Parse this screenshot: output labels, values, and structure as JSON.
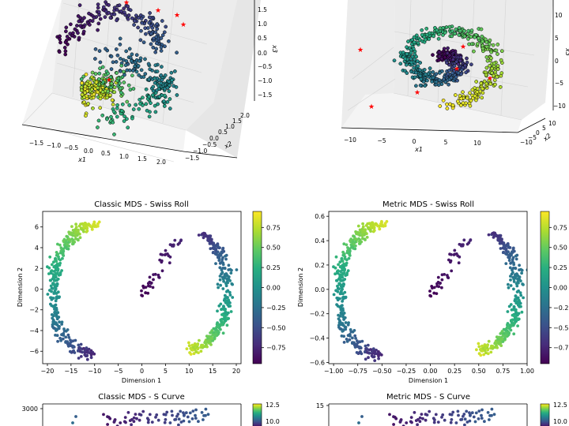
{
  "colors": {
    "viridis": [
      "#440154",
      "#472d7b",
      "#3b528b",
      "#2c728e",
      "#21918c",
      "#28ae80",
      "#5ec962",
      "#addc30",
      "#fde725"
    ],
    "marker_edge": "#000000",
    "star": "#ff0000",
    "pane": "#f2f2f2",
    "grid": "#d9d9d9"
  },
  "chart_data": [
    {
      "id": "s-curve-3d",
      "type": "scatter",
      "projection": "3d",
      "title": "",
      "xlabel": "x1",
      "ylabel": "x2",
      "zlabel": "x3",
      "x_ticks": [
        "−1.5",
        "−1.0",
        "−0.5",
        "0.0",
        "0.5",
        "1.0",
        "1.5",
        "2.0"
      ],
      "y_ticks": [
        "−1.5",
        "−1.0",
        "−0.5",
        "0.0",
        "0.5",
        "1.0",
        "1.5",
        "2.0"
      ],
      "z_ticks": [
        "1.5",
        "1.0",
        "0.5",
        "0.0",
        "−0.5",
        "−1.0",
        "−1.5"
      ],
      "n_points": 600,
      "colormap": "viridis",
      "markers": "circles with black edges, plus red star landmarks"
    },
    {
      "id": "swiss-roll-3d",
      "type": "scatter",
      "projection": "3d",
      "title": "",
      "xlabel": "x1",
      "ylabel": "x2",
      "zlabel": "x3",
      "x_ticks": [
        "−10",
        "−5",
        "0",
        "5",
        "10"
      ],
      "y_ticks": [
        "−10",
        "−5",
        "0",
        "5",
        "10"
      ],
      "z_ticks": [
        "10",
        "5",
        "0",
        "−5",
        "−10"
      ],
      "n_points": 600,
      "colormap": "viridis",
      "markers": "circles with black edges, plus red star landmarks"
    },
    {
      "id": "classic-mds-swiss-roll",
      "type": "scatter",
      "title": "Classic MDS - Swiss Roll",
      "xlabel": "Dimension 1",
      "ylabel": "Dimension 2",
      "xlim": [
        -21,
        21
      ],
      "ylim": [
        -7.2,
        7.5
      ],
      "x_ticks": [
        -20,
        -15,
        -10,
        -5,
        0,
        5,
        10,
        15,
        20
      ],
      "y_ticks": [
        -6,
        -4,
        -2,
        0,
        2,
        4,
        6
      ],
      "shape": "S-shaped curve from upper-left (x≈-11, y≈6.5) down the left arc to (-10,-5.5), up through origin to arc top (10,5.8) and down the right side to (10,-6)",
      "n_points": 700,
      "colorbar": {
        "range": [
          -0.95,
          0.95
        ],
        "ticks": [
          "0.75",
          "0.50",
          "0.25",
          "0.00",
          "−0.25",
          "−0.50",
          "−0.75"
        ]
      }
    },
    {
      "id": "metric-mds-swiss-roll",
      "type": "scatter",
      "title": "Metric MDS - Swiss Roll",
      "xlabel": "Dimension 1",
      "ylabel": "Dimension 2",
      "xlim": [
        -1.05,
        1.0
      ],
      "ylim": [
        -0.61,
        0.64
      ],
      "x_ticks": [
        "−1.00",
        "−0.75",
        "−0.50",
        "−0.25",
        "0.00",
        "0.25",
        "0.50",
        "0.75",
        "1.00"
      ],
      "y_ticks": [
        "−0.6",
        "−0.4",
        "−0.2",
        "0.0",
        "0.2",
        "0.4",
        "0.6"
      ],
      "shape": "same S-shaped curve as classic MDS, rescaled to ±1 range",
      "n_points": 700,
      "colorbar": {
        "range": [
          -0.95,
          0.95
        ],
        "ticks": [
          "0.75",
          "0.50",
          "0.25",
          "0.00",
          "−0.25",
          "−0.5",
          "−0.7"
        ]
      }
    },
    {
      "id": "classic-mds-s-curve",
      "type": "scatter",
      "title": "Classic MDS - S Curve",
      "y_ticks": [
        "3000"
      ],
      "colorbar": {
        "ticks": [
          "12.5",
          "10.0"
        ]
      },
      "visible": "top portion only (cropped)"
    },
    {
      "id": "metric-mds-s-curve",
      "type": "scatter",
      "title": "Metric MDS - S Curve",
      "y_ticks": [
        "15"
      ],
      "colorbar": {
        "ticks": [
          "12.5",
          "10.0"
        ]
      },
      "visible": "top portion only (cropped)"
    }
  ]
}
